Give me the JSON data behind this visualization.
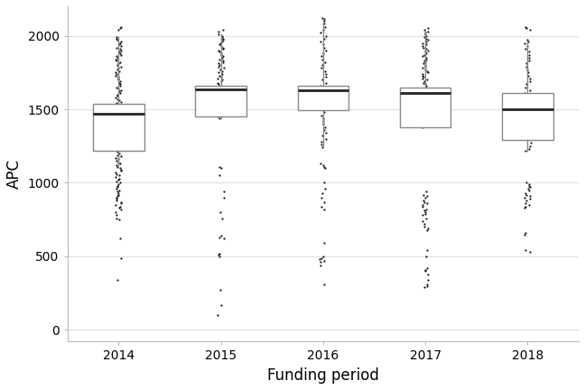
{
  "title": "",
  "xlabel": "Funding period",
  "ylabel": "APC",
  "years": [
    "2014",
    "2015",
    "2016",
    "2017",
    "2018"
  ],
  "ylim": [
    -80,
    2200
  ],
  "yticks": [
    0,
    500,
    1000,
    1500,
    2000
  ],
  "box_stats": {
    "2014": {
      "q1": 1215,
      "median": 1468,
      "q3": 1534,
      "whislo": 1120,
      "whishi": 1990
    },
    "2015": {
      "q1": 1448,
      "median": 1638,
      "q3": 1660,
      "whislo": 1440,
      "whishi": 2010
    },
    "2016": {
      "q1": 1492,
      "median": 1630,
      "q3": 1660,
      "whislo": 1240,
      "whishi": 2115
    },
    "2017": {
      "q1": 1378,
      "median": 1608,
      "q3": 1650,
      "whislo": 1378,
      "whishi": 2040
    },
    "2018": {
      "q1": 1290,
      "median": 1500,
      "q3": 1608,
      "whislo": 1215,
      "whishi": 1958
    }
  },
  "dot_data": {
    "2014": [
      340,
      490,
      620,
      750,
      760,
      780,
      800,
      820,
      830,
      840,
      850,
      860,
      870,
      880,
      890,
      900,
      910,
      920,
      930,
      940,
      950,
      960,
      970,
      980,
      990,
      1000,
      1010,
      1020,
      1030,
      1040,
      1050,
      1060,
      1070,
      1080,
      1090,
      1100,
      1110,
      1120,
      1130,
      1140,
      1150,
      1160,
      1170,
      1180,
      1190,
      1200,
      1210,
      1220,
      1230,
      1240,
      1250,
      1260,
      1270,
      1280,
      1290,
      1300,
      1310,
      1320,
      1330,
      1340,
      1350,
      1360,
      1370,
      1380,
      1390,
      1400,
      1410,
      1420,
      1430,
      1440,
      1450,
      1460,
      1470,
      1480,
      1490,
      1500,
      1510,
      1520,
      1530,
      1540,
      1550,
      1560,
      1570,
      1580,
      1590,
      1600,
      1610,
      1620,
      1630,
      1640,
      1650,
      1660,
      1670,
      1680,
      1690,
      1700,
      1710,
      1720,
      1730,
      1740,
      1750,
      1760,
      1770,
      1780,
      1790,
      1800,
      1810,
      1820,
      1830,
      1840,
      1850,
      1860,
      1870,
      1880,
      1890,
      1900,
      1910,
      1920,
      1930,
      1940,
      1950,
      1960,
      1970,
      1980,
      1990,
      2040,
      2050,
      2060
    ],
    "2015": [
      100,
      170,
      270,
      500,
      510,
      520,
      620,
      630,
      640,
      760,
      800,
      900,
      940,
      1050,
      1100,
      1110,
      1440,
      1450,
      1460,
      1470,
      1480,
      1490,
      1500,
      1510,
      1520,
      1530,
      1540,
      1550,
      1560,
      1570,
      1580,
      1590,
      1600,
      1610,
      1620,
      1630,
      1640,
      1650,
      1660,
      1670,
      1680,
      1690,
      1700,
      1710,
      1720,
      1730,
      1740,
      1750,
      1760,
      1770,
      1780,
      1790,
      1800,
      1810,
      1820,
      1830,
      1840,
      1850,
      1860,
      1870,
      1880,
      1890,
      1900,
      1910,
      1920,
      1930,
      1940,
      1950,
      1960,
      1970,
      1980,
      1990,
      2000,
      2010,
      2030,
      2040
    ],
    "2016": [
      310,
      440,
      460,
      470,
      480,
      490,
      500,
      590,
      820,
      840,
      870,
      900,
      930,
      960,
      1000,
      1100,
      1110,
      1120,
      1130,
      1240,
      1260,
      1280,
      1300,
      1320,
      1340,
      1360,
      1380,
      1400,
      1420,
      1440,
      1460,
      1480,
      1500,
      1520,
      1540,
      1560,
      1580,
      1600,
      1620,
      1640,
      1660,
      1680,
      1700,
      1720,
      1740,
      1760,
      1780,
      1800,
      1820,
      1840,
      1860,
      1880,
      1900,
      1920,
      1940,
      1960,
      1980,
      2000,
      2020,
      2040,
      2060,
      2080,
      2100,
      2115,
      2120
    ],
    "2017": [
      290,
      300,
      310,
      340,
      380,
      400,
      410,
      420,
      500,
      540,
      680,
      690,
      700,
      720,
      740,
      760,
      780,
      790,
      800,
      810,
      820,
      840,
      850,
      860,
      870,
      880,
      900,
      910,
      920,
      940,
      1378,
      1390,
      1400,
      1410,
      1420,
      1430,
      1440,
      1450,
      1460,
      1470,
      1480,
      1490,
      1500,
      1510,
      1520,
      1530,
      1540,
      1550,
      1560,
      1570,
      1580,
      1590,
      1600,
      1610,
      1620,
      1630,
      1640,
      1650,
      1660,
      1670,
      1680,
      1690,
      1700,
      1710,
      1720,
      1730,
      1740,
      1750,
      1760,
      1770,
      1780,
      1790,
      1800,
      1810,
      1820,
      1830,
      1840,
      1850,
      1860,
      1870,
      1880,
      1890,
      1900,
      1910,
      1920,
      1930,
      1940,
      1950,
      1960,
      1970,
      1980,
      1990,
      2000,
      2010,
      2020,
      2030,
      2040,
      2050
    ],
    "2018": [
      530,
      540,
      650,
      660,
      830,
      840,
      850,
      860,
      880,
      890,
      900,
      910,
      920,
      930,
      950,
      960,
      970,
      980,
      990,
      1000,
      1215,
      1230,
      1250,
      1270,
      1290,
      1310,
      1330,
      1350,
      1370,
      1390,
      1410,
      1430,
      1450,
      1470,
      1490,
      1510,
      1530,
      1550,
      1570,
      1590,
      1610,
      1630,
      1650,
      1670,
      1690,
      1710,
      1730,
      1750,
      1770,
      1790,
      1810,
      1830,
      1850,
      1870,
      1890,
      1910,
      1930,
      1950,
      1960,
      1970,
      2040,
      2050,
      2060
    ]
  },
  "box_color": "white",
  "box_edgecolor": "#888888",
  "median_color": "#222222",
  "whisker_color": "#888888",
  "dot_color": "#111111",
  "dot_size": 2.5,
  "jitter_strength": 0.03,
  "background_color": "white",
  "grid_color": "#e0e0e0",
  "axis_label_fontsize": 12,
  "tick_fontsize": 10,
  "box_width": 0.5
}
